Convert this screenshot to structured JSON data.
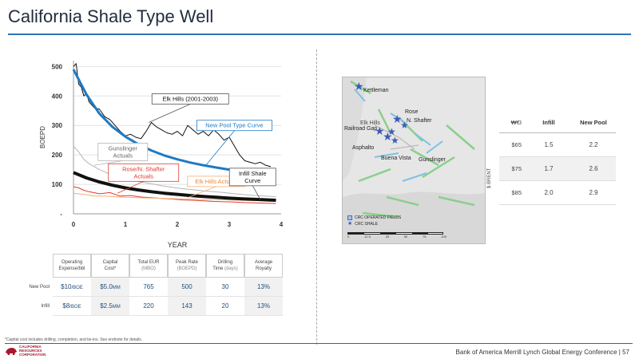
{
  "page": {
    "title": "California Shale Type Well",
    "footnote": "*Capital cost includes drilling, completion, and tie-ins. See endnote for details.",
    "conference": "Bank of America Merrill Lynch Global Energy Conference",
    "page_number": "| 57",
    "logo_lines": [
      "CALIFORNIA",
      "RESOURCES",
      "CORPORATION"
    ]
  },
  "chart_data": {
    "type": "line",
    "xlabel": "YEAR",
    "ylabel": "BOEPD",
    "xlim": [
      0,
      4
    ],
    "ylim": [
      0,
      520
    ],
    "x_ticks": [
      "0",
      "1",
      "2",
      "3",
      "4"
    ],
    "y_ticks": [
      {
        "value": 100,
        "label": "100"
      },
      {
        "value": 200,
        "label": "200"
      },
      {
        "value": 300,
        "label": "300"
      },
      {
        "value": 400,
        "label": "400"
      },
      {
        "value": 500,
        "label": "500"
      },
      {
        "value": 0,
        "label": "-"
      }
    ],
    "series": [
      {
        "name": "Elk Hills (2001-2003)",
        "color": "#111111",
        "width": 1,
        "x": [
          0,
          0.05,
          0.1,
          0.15,
          0.2,
          0.25,
          0.3,
          0.4,
          0.5,
          0.6,
          0.7,
          0.8,
          0.9,
          1.0,
          1.1,
          1.2,
          1.3,
          1.4,
          1.5,
          1.6,
          1.7,
          1.8,
          1.9,
          2.0,
          2.1,
          2.2,
          2.3,
          2.4,
          2.5,
          2.6,
          2.7,
          2.8,
          2.9,
          3.0,
          3.1,
          3.2,
          3.3,
          3.4,
          3.5,
          3.6,
          3.7,
          3.8
        ],
        "y": [
          500,
          510,
          440,
          430,
          400,
          410,
          380,
          360,
          355,
          330,
          320,
          300,
          280,
          265,
          270,
          260,
          255,
          280,
          310,
          295,
          285,
          275,
          270,
          280,
          265,
          300,
          285,
          270,
          280,
          265,
          285,
          270,
          250,
          260,
          230,
          200,
          180,
          175,
          170,
          175,
          165,
          160
        ]
      },
      {
        "name": "New Pool Type Curve",
        "color": "#1f7ac2",
        "width": 3,
        "x": [
          0,
          0.25,
          0.5,
          0.75,
          1.0,
          1.25,
          1.5,
          1.75,
          2.0,
          2.25,
          2.5,
          2.75,
          3.0,
          3.25,
          3.5,
          3.75,
          3.9
        ],
        "y": [
          490,
          405,
          340,
          295,
          262,
          236,
          215,
          198,
          185,
          174,
          165,
          157,
          150,
          145,
          140,
          136,
          134
        ]
      },
      {
        "name": "Gunslinger Actuals",
        "color": "#b5b5b5",
        "width": 1,
        "x": [
          0,
          0.1,
          0.2,
          0.3,
          0.5,
          0.7,
          0.9,
          1.1,
          1.3,
          1.5,
          1.7,
          1.9,
          2.1,
          2.3,
          2.5,
          2.7,
          2.9,
          3.1,
          3.3,
          3.5,
          3.7,
          3.9
        ],
        "y": [
          230,
          210,
          185,
          170,
          150,
          135,
          125,
          115,
          108,
          102,
          95,
          90,
          85,
          82,
          78,
          75,
          72,
          68,
          65,
          62,
          60,
          58
        ]
      },
      {
        "name": "Rose/N. Shafter Actuals",
        "color": "#e03a2f",
        "width": 1,
        "x": [
          0,
          0.1,
          0.2,
          0.3,
          0.5,
          0.7,
          0.9,
          1.1,
          1.3,
          1.5,
          1.7,
          1.9,
          2.1,
          2.3,
          2.5,
          2.7,
          2.9,
          3.1,
          3.3,
          3.5,
          3.7,
          3.9
        ],
        "y": [
          92,
          88,
          80,
          75,
          68,
          72,
          60,
          62,
          57,
          55,
          52,
          50,
          47,
          46,
          44,
          42,
          41,
          40,
          38,
          37,
          36,
          35
        ]
      },
      {
        "name": "Elk Hills Actuals",
        "color": "#f2b07a",
        "width": 1,
        "x": [
          0,
          0.2,
          0.4,
          0.6,
          0.8,
          1.0,
          1.2,
          1.4,
          1.6,
          1.8,
          2.0,
          2.2,
          2.4,
          2.6,
          2.8,
          3.0,
          3.2,
          3.4,
          3.6,
          3.8,
          3.9
        ],
        "y": [
          70,
          66,
          60,
          60,
          58,
          56,
          55,
          54,
          53,
          52,
          51,
          50,
          49,
          48,
          48,
          47,
          46,
          45,
          45,
          44,
          44
        ]
      },
      {
        "name": "Infill Shale Curve",
        "color": "#111111",
        "width": 4,
        "x": [
          0,
          0.25,
          0.5,
          0.75,
          1.0,
          1.25,
          1.5,
          1.75,
          2.0,
          2.25,
          2.5,
          2.75,
          3.0,
          3.25,
          3.5,
          3.75,
          3.9
        ],
        "y": [
          140,
          122,
          108,
          97,
          88,
          81,
          75,
          70,
          66,
          62,
          59,
          56,
          53,
          51,
          49,
          47,
          46
        ]
      }
    ],
    "annotations": [
      {
        "label": "Elk Hills (2001-2003)",
        "color": "#111111",
        "border": "#555555",
        "ax": 1.45,
        "ay": 310,
        "tx": 2.25,
        "ty": 390,
        "w": 96
      },
      {
        "label": "New Pool Type Curve",
        "color": "#1f7ac2",
        "border": "#1f7ac2",
        "ax": 2.55,
        "ay": 165,
        "tx": 3.1,
        "ty": 300,
        "w": 94
      },
      {
        "label": "Gunslinger Actuals",
        "color": "#666666",
        "border": "#b5b5b5",
        "ax": 0.4,
        "ay": 165,
        "tx": 0.95,
        "ty": 210,
        "w": 62,
        "lines": 2
      },
      {
        "label": "Rose/N. Shafter Actuals",
        "color": "#e03a2f",
        "border": "#e03a2f",
        "ax": 0.85,
        "ay": 70,
        "tx": 1.35,
        "ty": 140,
        "w": 88,
        "lines": 2
      },
      {
        "label": "Elk Hills Actuals",
        "color": "#e8893a",
        "border": "#f2b07a",
        "ax": 2.2,
        "ay": 55,
        "tx": 2.75,
        "ty": 110,
        "w": 72
      },
      {
        "label": "Infill Shale Curve",
        "color": "#111111",
        "border": "#555555",
        "ax": 3.6,
        "ay": 48,
        "tx": 3.45,
        "ty": 125,
        "w": 58,
        "lines": 2
      }
    ]
  },
  "metrics_table": {
    "headers": [
      {
        "line1": "Operating",
        "line2": "Expense/bbl",
        "sub": ""
      },
      {
        "line1": "Capital",
        "line2": "Cost*",
        "sub": ""
      },
      {
        "line1": "Total EUR",
        "line2": "",
        "sub": "(MBO)"
      },
      {
        "line1": "Peak Rate",
        "line2": "",
        "sub": "(BOEPD)"
      },
      {
        "line1": "Drilling",
        "line2": "Time ",
        "sub": "(days)"
      },
      {
        "line1": "Average",
        "line2": "Royalty",
        "sub": ""
      }
    ],
    "rows": [
      {
        "label": "New Pool",
        "cells": [
          {
            "v": "$10",
            "u": "/BOE"
          },
          {
            "v": "$5.0",
            "u": "MM"
          },
          {
            "v": "765",
            "u": ""
          },
          {
            "v": "500",
            "u": ""
          },
          {
            "v": "30",
            "u": ""
          },
          {
            "v": "13%",
            "u": ""
          }
        ]
      },
      {
        "label": "Infill",
        "cells": [
          {
            "v": "$8",
            "u": "/BOE"
          },
          {
            "v": "$2.5",
            "u": "MM"
          },
          {
            "v": "220",
            "u": ""
          },
          {
            "v": "143",
            "u": ""
          },
          {
            "v": "20",
            "u": ""
          },
          {
            "v": "13%",
            "u": ""
          }
        ]
      }
    ]
  },
  "map": {
    "labels": [
      "Kettleman",
      "Rose",
      "N. Shafter",
      "Elk Hills",
      "Railroad Gap",
      "Asphalto",
      "Buena Vista",
      "Gunslinger"
    ],
    "legend": [
      "CRC OPERATED FIELDS",
      "CRC SHALE"
    ],
    "scale": [
      "0",
      "12.5",
      "25",
      "50",
      "75",
      "100"
    ]
  },
  "price_table": {
    "corner": "₩€I",
    "columns": [
      "Infill",
      "New Pool"
    ],
    "axis_label": "$ BRENT",
    "rows": [
      {
        "price": "$65",
        "infill": "1.5",
        "newpool": "2.2"
      },
      {
        "price": "$75",
        "infill": "1.7",
        "newpool": "2.6"
      },
      {
        "price": "$85",
        "infill": "2.0",
        "newpool": "2.9"
      }
    ]
  }
}
